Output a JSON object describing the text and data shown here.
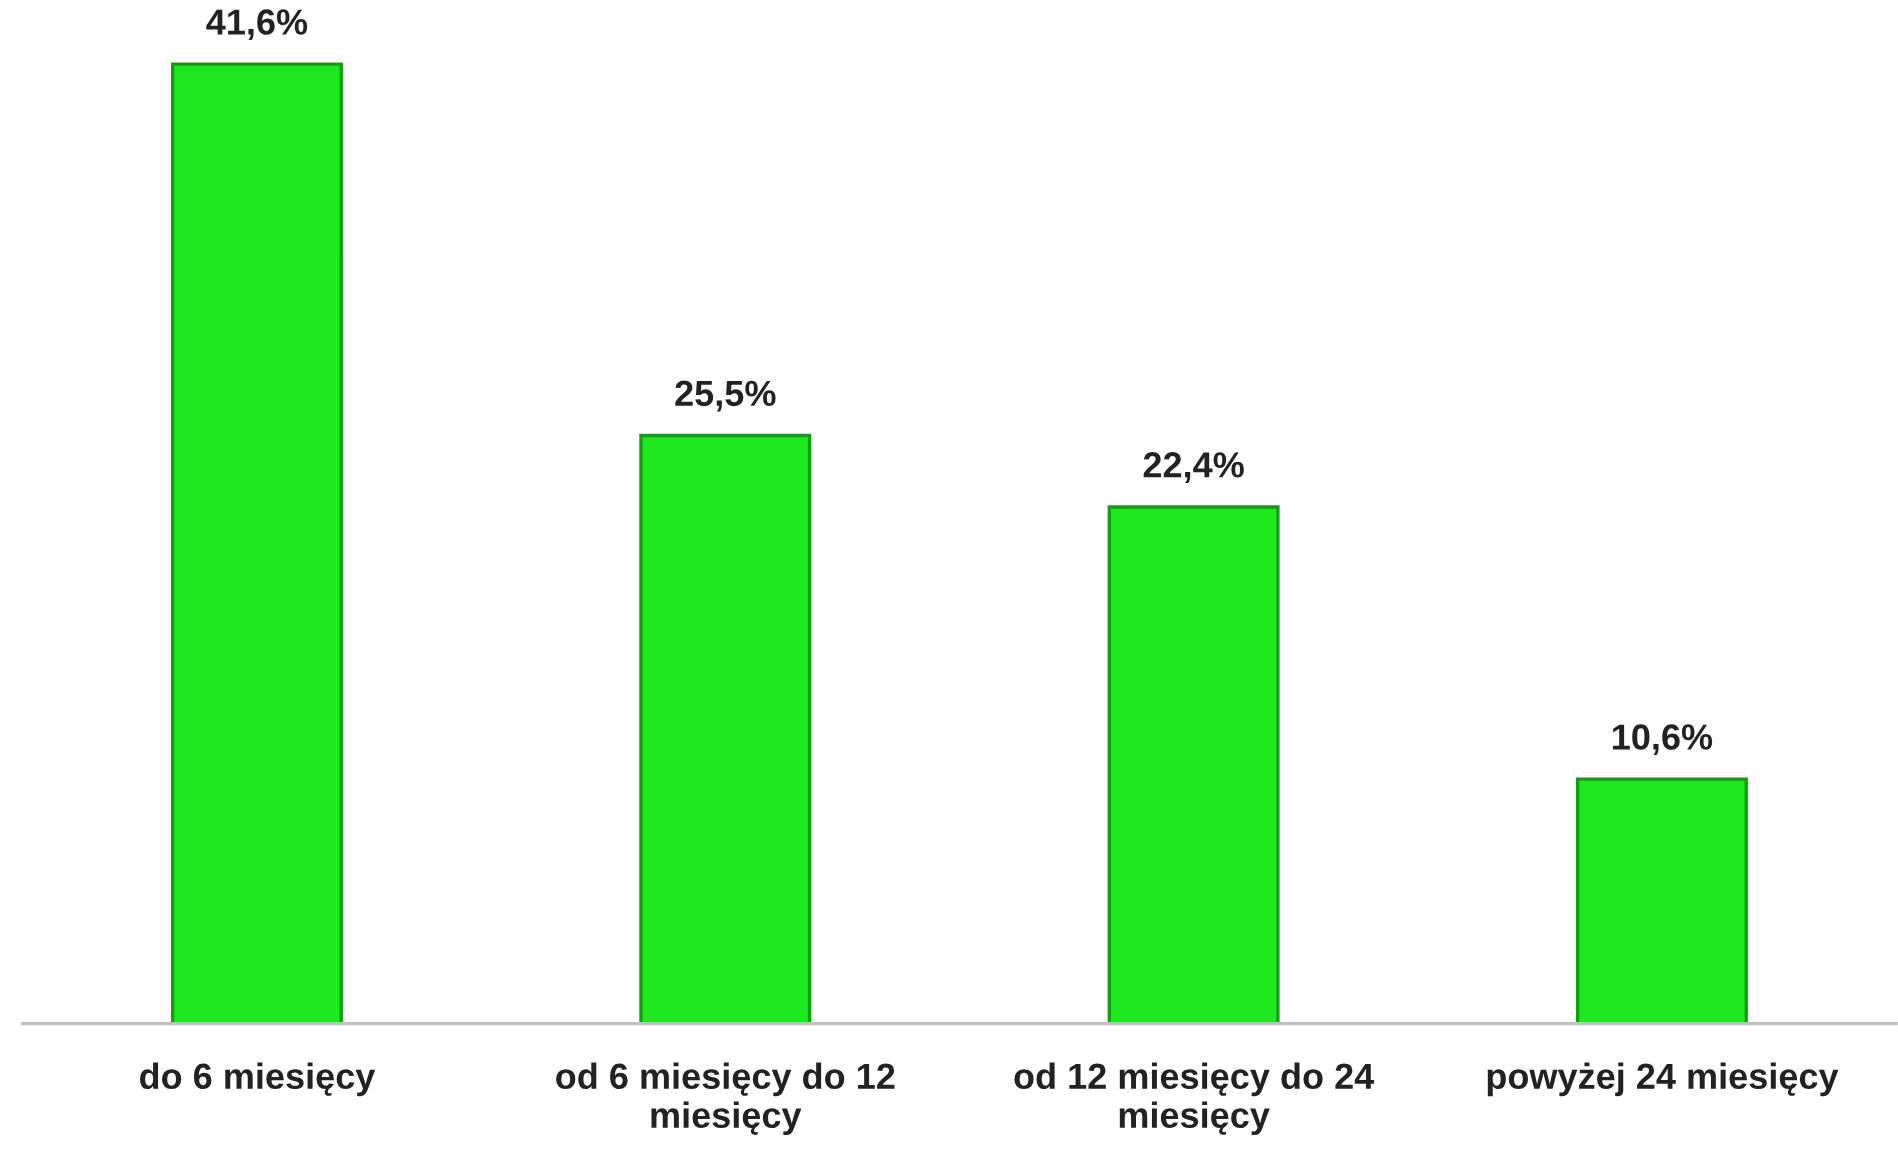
{
  "chart_data": {
    "type": "bar",
    "categories": [
      "do 6 miesięcy",
      "od 6 miesięcy do 12\nmiesięcy",
      "od 12 miesięcy do 24\nmiesięcy",
      "powyżej 24 miesięcy"
    ],
    "values": [
      41.6,
      25.5,
      22.4,
      10.6
    ],
    "value_labels": [
      "41,6%",
      "25,5%",
      "22,4%",
      "10,6%"
    ],
    "color": "#1ee81e",
    "grid": false,
    "legend": false
  }
}
